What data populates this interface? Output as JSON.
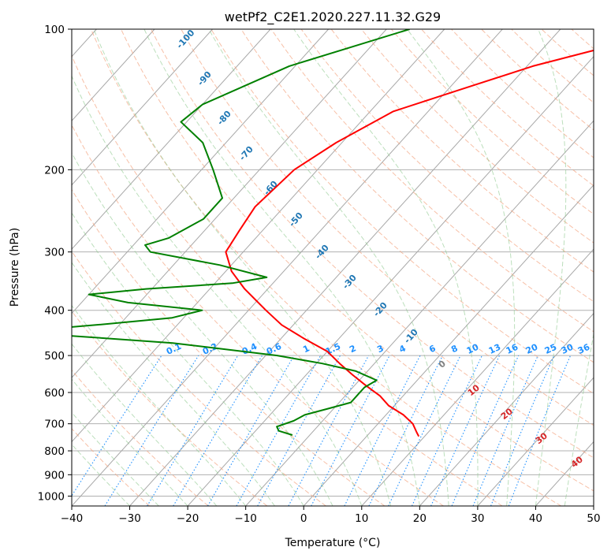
{
  "chart_data": {
    "type": "line",
    "subtype": "skew-T log-P diagram",
    "title": "wetPf2_C2E1.2020.227.11.32.G29",
    "xlabel": "Temperature (°C)",
    "ylabel": "Pressure (hPa)",
    "xlim": [
      -40,
      50
    ],
    "ylim": [
      1050,
      100
    ],
    "yscale": "log",
    "grid": true,
    "x_ticks": [
      "−40",
      "−30",
      "−20",
      "−10",
      "0",
      "10",
      "20",
      "30",
      "40",
      "50"
    ],
    "y_ticks": [
      {
        "p": 100,
        "label": "100"
      },
      {
        "p": 200,
        "label": "200"
      },
      {
        "p": 300,
        "label": "300"
      },
      {
        "p": 400,
        "label": "400"
      },
      {
        "p": 500,
        "label": "500"
      },
      {
        "p": 600,
        "label": "600"
      },
      {
        "p": 700,
        "label": "700"
      },
      {
        "p": 800,
        "label": "800"
      },
      {
        "p": 900,
        "label": "900"
      },
      {
        "p": 1000,
        "label": "1000"
      }
    ],
    "dry_adiabat_labels": [
      "-100",
      "-90",
      "-80",
      "-70",
      "-60",
      "-50",
      "-40",
      "-30",
      "-20",
      "-10"
    ],
    "moist_adiabat_labels": [
      "0",
      "10",
      "20",
      "30",
      "40"
    ],
    "mixing_ratio_labels": [
      "0.1",
      "0.2",
      "0.4",
      "0.6",
      "1",
      "1.5",
      "2",
      "3",
      "4",
      "6",
      "8",
      "10",
      "13",
      "16",
      "20",
      "25",
      "30",
      "36"
    ],
    "series": [
      {
        "role": "temperature",
        "color": "#ff0000",
        "points": [
          [
            100,
            -4
          ],
          [
            110,
            -20
          ],
          [
            120,
            -29
          ],
          [
            135,
            -38
          ],
          [
            150,
            -46
          ],
          [
            175,
            -51
          ],
          [
            200,
            -54
          ],
          [
            240,
            -55
          ],
          [
            270,
            -54
          ],
          [
            300,
            -53
          ],
          [
            330,
            -49
          ],
          [
            360,
            -44
          ],
          [
            400,
            -37
          ],
          [
            430,
            -32
          ],
          [
            460,
            -26
          ],
          [
            490,
            -20
          ],
          [
            520,
            -16
          ],
          [
            550,
            -12
          ],
          [
            580,
            -8
          ],
          [
            610,
            -4
          ],
          [
            640,
            -1
          ],
          [
            670,
            3
          ],
          [
            700,
            6
          ],
          [
            730,
            8
          ],
          [
            745,
            9
          ]
        ]
      },
      {
        "role": "dewpoint",
        "color": "#008000",
        "points": [
          [
            100,
            -56
          ],
          [
            120,
            -71
          ],
          [
            145,
            -80
          ],
          [
            158,
            -81
          ],
          [
            175,
            -74
          ],
          [
            200,
            -68
          ],
          [
            230,
            -62
          ],
          [
            255,
            -62
          ],
          [
            280,
            -65
          ],
          [
            290,
            -68
          ],
          [
            300,
            -66
          ],
          [
            320,
            -52
          ],
          [
            340,
            -42
          ],
          [
            350,
            -47
          ],
          [
            360,
            -61
          ],
          [
            370,
            -70
          ],
          [
            385,
            -62
          ],
          [
            400,
            -48
          ],
          [
            415,
            -52
          ],
          [
            430,
            -64
          ],
          [
            440,
            -73
          ],
          [
            450,
            -71
          ],
          [
            470,
            -48
          ],
          [
            500,
            -28
          ],
          [
            520,
            -19
          ],
          [
            540,
            -12
          ],
          [
            565,
            -7
          ],
          [
            585,
            -8
          ],
          [
            605,
            -8
          ],
          [
            630,
            -8
          ],
          [
            650,
            -11
          ],
          [
            670,
            -14
          ],
          [
            690,
            -15
          ],
          [
            710,
            -17
          ],
          [
            725,
            -16
          ],
          [
            740,
            -13
          ]
        ]
      }
    ]
  }
}
